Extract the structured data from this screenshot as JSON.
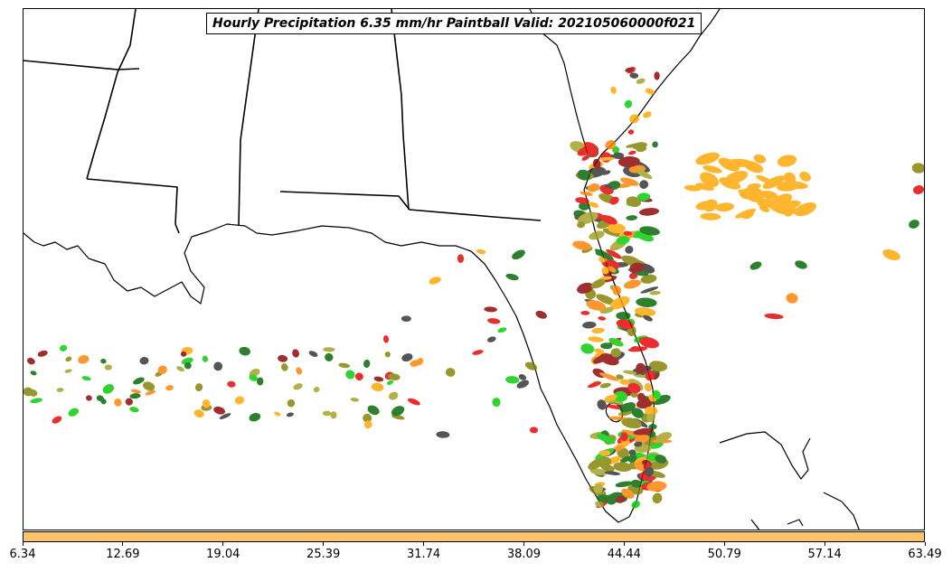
{
  "title": "Hourly Precipitation 6.35 mm/hr Paintball Valid: 202105060000f021",
  "colorbar": {
    "color": "#ffc266",
    "ticks": [
      "6.34",
      "12.69",
      "19.04",
      "25.39",
      "31.74",
      "38.09",
      "44.44",
      "50.79",
      "57.14",
      "63.49"
    ]
  },
  "palette": {
    "red": "#e60000",
    "dark_red": "#8b0000",
    "orange": "#ff8000",
    "light_orange": "#ffa500",
    "green": "#00cc00",
    "dark_green": "#006400",
    "olive": "#808000",
    "khaki_olive": "#a0a020",
    "dark_gray": "#303030"
  }
}
